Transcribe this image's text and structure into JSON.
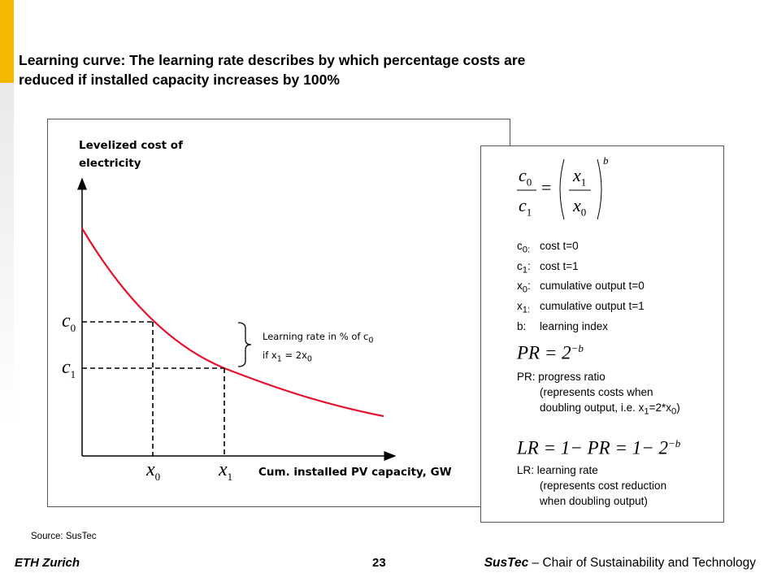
{
  "slide": {
    "title_line1": "Learning curve: The learning rate describes by which percentage costs are",
    "title_line2": "reduced if installed capacity increases by 100%",
    "source": "Source: SusTec"
  },
  "diagram": {
    "y_axis_label_line1": "Levelized cost of",
    "y_axis_label_line2": "electricity",
    "x_axis_label": "Cum. installed PV capacity, GW",
    "c0": "c",
    "c0_sub": "0",
    "c1": "c",
    "c1_sub": "1",
    "x0": "x",
    "x0_sub": "0",
    "x1": "x",
    "x1_sub": "1",
    "annotation_line1": "Learning rate in % of c",
    "annotation_line1_sub": "0",
    "annotation_line2_a": "if x",
    "annotation_line2_sub1": "1",
    "annotation_line2_b": " = 2x",
    "annotation_line2_sub2": "0",
    "curve_color": "#e8112d"
  },
  "formulas": {
    "main": {
      "c0": "c",
      "c0_sub": "0",
      "c1": "c",
      "c1_sub": "1",
      "x1": "x",
      "x1_sub": "1",
      "x0": "x",
      "x0_sub": "0",
      "eq": "=",
      "exp": "b"
    },
    "definitions": [
      {
        "sym": "c",
        "sub": "0:",
        "text": "cost t=0"
      },
      {
        "sym": "c",
        "sub": "1",
        "colon": ":",
        "text": "cost t=1"
      },
      {
        "sym": "x",
        "sub": "0",
        "colon": ":",
        "text": "cumulative  output t=0"
      },
      {
        "sym": "x",
        "sub": "1:",
        "text": "cumulative  output t=1"
      },
      {
        "sym": "b:",
        "sub": "",
        "text": "learning index"
      }
    ],
    "pr_formula": "PR = 2",
    "pr_exp": "−b",
    "pr_line1": "PR: progress ratio",
    "pr_line2": "(represents costs when",
    "pr_line3a": "doubling output,  i.e. x",
    "pr_line3_sub1": "1",
    "pr_line3b": "=2*x",
    "pr_line3_sub2": "0",
    "pr_line3c": ")",
    "lr_formula": "LR = 1− PR = 1− 2",
    "lr_exp": "−b",
    "lr_line1": "LR: learning rate",
    "lr_line2": "(represents cost reduction",
    "lr_line3": "when doubling output)"
  },
  "footer": {
    "left": "ETH Zurich",
    "page": "23",
    "org": "SusTec",
    "rest": " – Chair of Sustainability and Technology"
  }
}
